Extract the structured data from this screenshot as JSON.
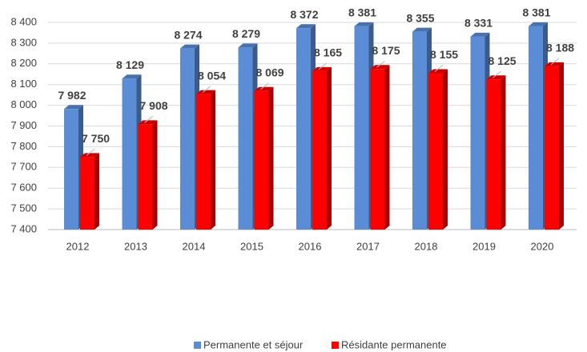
{
  "chart_data": {
    "type": "bar",
    "categories": [
      "2012",
      "2013",
      "2014",
      "2015",
      "2016",
      "2017",
      "2018",
      "2019",
      "2020"
    ],
    "series": [
      {
        "name": "Permanente et séjour",
        "color": "#5b8dd6",
        "values": [
          7982,
          8129,
          8274,
          8279,
          8372,
          8381,
          8355,
          8331,
          8381
        ],
        "value_labels": [
          "7 982",
          "8 129",
          "8 274",
          "8 279",
          "8 372",
          "8 381",
          "8 355",
          "8 331",
          "8 381"
        ]
      },
      {
        "name": "Résidante permanente",
        "color": "#ff0000",
        "values": [
          7750,
          7908,
          8054,
          8069,
          8165,
          8175,
          8155,
          8125,
          8188
        ],
        "value_labels": [
          "7 750",
          "7 908",
          "8 054",
          "8 069",
          "8 165",
          "8 175",
          "8 155",
          "8 125",
          "8 188"
        ]
      }
    ],
    "ylim": [
      7400,
      8400
    ],
    "yticks": [
      {
        "value": 7400,
        "label": "7 400"
      },
      {
        "value": 7500,
        "label": "7 500"
      },
      {
        "value": 7600,
        "label": "7 600"
      },
      {
        "value": 7700,
        "label": "7 700"
      },
      {
        "value": 7800,
        "label": "7 800"
      },
      {
        "value": 7900,
        "label": "7 900"
      },
      {
        "value": 8000,
        "label": "8 000"
      },
      {
        "value": 8100,
        "label": "8 100"
      },
      {
        "value": 8200,
        "label": "8 200"
      },
      {
        "value": 8300,
        "label": "8 300"
      },
      {
        "value": 8400,
        "label": "8 400"
      }
    ],
    "grid": true,
    "legend": "bottom"
  }
}
